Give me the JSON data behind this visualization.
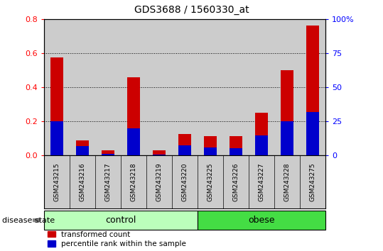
{
  "title": "GDS3688 / 1560330_at",
  "samples": [
    "GSM243215",
    "GSM243216",
    "GSM243217",
    "GSM243218",
    "GSM243219",
    "GSM243220",
    "GSM243225",
    "GSM243226",
    "GSM243227",
    "GSM243228",
    "GSM243275"
  ],
  "transformed_count": [
    0.575,
    0.09,
    0.03,
    0.46,
    0.03,
    0.125,
    0.115,
    0.115,
    0.25,
    0.5,
    0.76
  ],
  "percentile_rank_pct": [
    25,
    7,
    1.5,
    20,
    0.7,
    7.5,
    6,
    5.5,
    15,
    25,
    32
  ],
  "groups": [
    {
      "label": "control",
      "start": 0,
      "end": 6,
      "color": "#bbffbb"
    },
    {
      "label": "obese",
      "start": 6,
      "end": 11,
      "color": "#44dd44"
    }
  ],
  "ylim_left": [
    0,
    0.8
  ],
  "ylim_right": [
    0,
    100
  ],
  "yticks_left": [
    0,
    0.2,
    0.4,
    0.6,
    0.8
  ],
  "yticks_right": [
    0,
    25,
    50,
    75,
    100
  ],
  "bar_color_red": "#cc0000",
  "bar_color_blue": "#0000cc",
  "bar_width": 0.5,
  "bg_color": "#cccccc",
  "label_transformed": "transformed count",
  "label_percentile": "percentile rank within the sample",
  "disease_state_label": "disease state"
}
